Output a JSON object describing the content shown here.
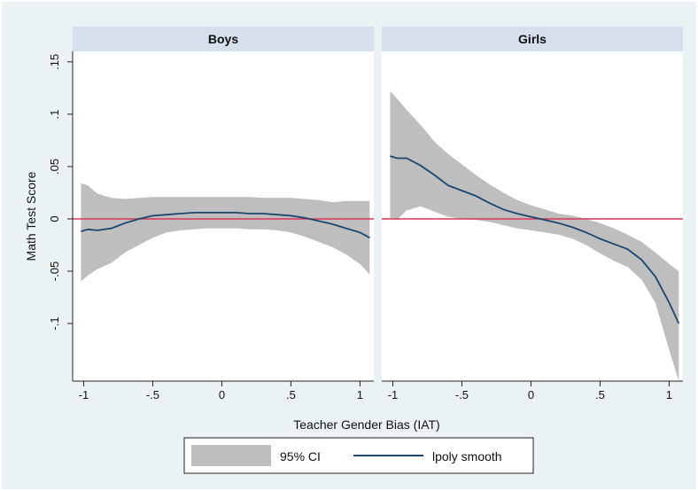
{
  "chart_data": {
    "type": "line",
    "xlabel": "Teacher Gender Bias (IAT)",
    "ylabel": "Math Test Score",
    "xlim": [
      -1.08,
      1.1
    ],
    "ylim": [
      -0.155,
      0.16
    ],
    "x_ticks": [
      -1,
      -0.5,
      0,
      0.5,
      1
    ],
    "x_tick_labels": [
      "-1",
      "-.5",
      "0",
      ".5",
      "1"
    ],
    "y_ticks": [
      -0.1,
      -0.05,
      0,
      0.05,
      0.1,
      0.15
    ],
    "y_tick_labels": [
      "-.1",
      "-.05",
      "0",
      ".05",
      ".1",
      ".15"
    ],
    "reference_line": {
      "y": 0,
      "color": "#d9365a"
    },
    "colors": {
      "ci_band": "#bebebe",
      "smooth_line": "#1a476f",
      "panel_header": "#d5e0ec",
      "outer_background": "#eaf2f3"
    },
    "grid": false,
    "legend": {
      "position": "bottom",
      "items": [
        {
          "label": "95% CI",
          "kind": "area"
        },
        {
          "label": "lpoly smooth",
          "kind": "line"
        }
      ]
    },
    "panels": [
      {
        "title": "Boys",
        "series": {
          "x": [
            -1.02,
            -0.97,
            -0.9,
            -0.8,
            -0.7,
            -0.6,
            -0.5,
            -0.4,
            -0.3,
            -0.2,
            -0.1,
            0.0,
            0.1,
            0.2,
            0.3,
            0.4,
            0.5,
            0.6,
            0.7,
            0.8,
            0.9,
            1.0,
            1.07
          ],
          "fit": [
            -0.012,
            -0.01,
            -0.011,
            -0.009,
            -0.004,
            0.0,
            0.003,
            0.004,
            0.005,
            0.006,
            0.006,
            0.006,
            0.006,
            0.005,
            0.005,
            0.004,
            0.003,
            0.001,
            -0.002,
            -0.005,
            -0.009,
            -0.013,
            -0.018
          ],
          "upper": [
            0.034,
            0.032,
            0.024,
            0.02,
            0.019,
            0.02,
            0.021,
            0.021,
            0.021,
            0.021,
            0.021,
            0.021,
            0.021,
            0.021,
            0.02,
            0.02,
            0.02,
            0.019,
            0.018,
            0.016,
            0.017,
            0.017,
            0.017
          ],
          "lower": [
            -0.06,
            -0.054,
            -0.048,
            -0.042,
            -0.032,
            -0.025,
            -0.018,
            -0.013,
            -0.011,
            -0.01,
            -0.009,
            -0.009,
            -0.009,
            -0.01,
            -0.01,
            -0.011,
            -0.013,
            -0.017,
            -0.022,
            -0.027,
            -0.034,
            -0.043,
            -0.053
          ]
        }
      },
      {
        "title": "Girls",
        "series": {
          "x": [
            -1.02,
            -0.97,
            -0.9,
            -0.8,
            -0.7,
            -0.6,
            -0.5,
            -0.4,
            -0.3,
            -0.2,
            -0.1,
            0.0,
            0.1,
            0.2,
            0.3,
            0.4,
            0.5,
            0.6,
            0.7,
            0.8,
            0.9,
            1.0,
            1.07
          ],
          "fit": [
            0.06,
            0.058,
            0.058,
            0.051,
            0.042,
            0.032,
            0.027,
            0.022,
            0.015,
            0.009,
            0.005,
            0.002,
            -0.001,
            -0.004,
            -0.008,
            -0.013,
            -0.019,
            -0.024,
            -0.029,
            -0.039,
            -0.055,
            -0.08,
            -0.1
          ],
          "upper": [
            0.122,
            0.115,
            0.104,
            0.09,
            0.074,
            0.062,
            0.052,
            0.042,
            0.033,
            0.025,
            0.018,
            0.013,
            0.009,
            0.005,
            0.003,
            0.0,
            -0.004,
            -0.009,
            -0.015,
            -0.022,
            -0.032,
            -0.043,
            -0.05
          ],
          "lower": [
            0.001,
            -0.001,
            0.008,
            0.012,
            0.007,
            0.002,
            0.0,
            -0.001,
            -0.003,
            -0.006,
            -0.009,
            -0.011,
            -0.013,
            -0.015,
            -0.019,
            -0.025,
            -0.033,
            -0.04,
            -0.046,
            -0.058,
            -0.08,
            -0.125,
            -0.155
          ]
        }
      }
    ]
  }
}
